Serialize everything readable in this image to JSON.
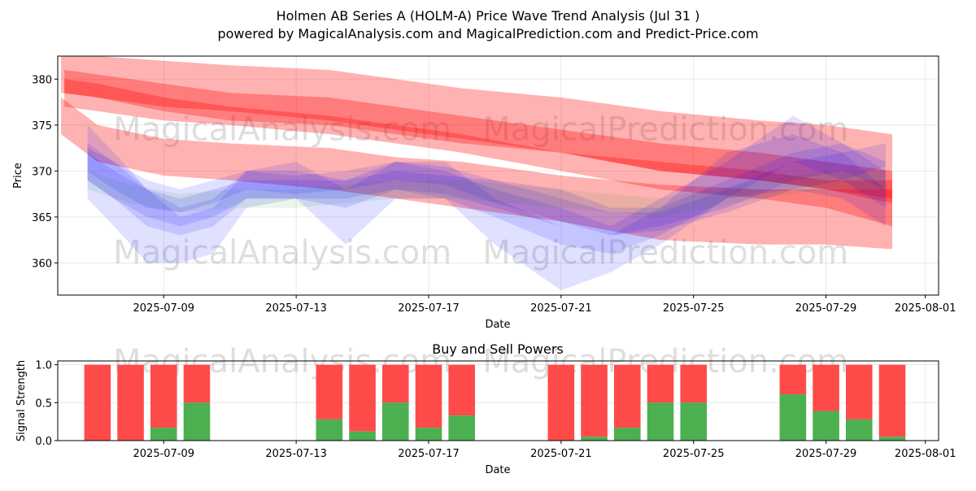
{
  "title_line1": "Holmen AB Series A (HOLM-A) Price Wave Trend Analysis (Jul 31 )",
  "title_line2": "powered by MagicalAnalysis.com and MagicalPrediction.com and Predict-Price.com",
  "watermarks": [
    "MagicalAnalysis.com",
    "MagicalPrediction.com"
  ],
  "colors": {
    "red": "#ff0000",
    "blue": "#0000ff",
    "green": "#008000",
    "buy": "#4caf50",
    "sell": "#ff4a4a"
  },
  "chart_data": [
    {
      "type": "area",
      "title": "",
      "xlabel": "Date",
      "ylabel": "Price",
      "ylim": [
        356.5,
        382.5
      ],
      "xlim": [
        "2025-07-05.8",
        "2025-08-01.4"
      ],
      "x_ticks": [
        "2025-07-09",
        "2025-07-13",
        "2025-07-17",
        "2025-07-21",
        "2025-07-25",
        "2025-07-29",
        "2025-08-01"
      ],
      "y_ticks": [
        360,
        365,
        370,
        375,
        380
      ],
      "grid": true,
      "series": [
        {
          "name": "red band A",
          "color": "red",
          "opacity": 0.3,
          "x": [
            5.9,
            7,
            9,
            11,
            14,
            16,
            18,
            21,
            24,
            27,
            29,
            31
          ],
          "upper": [
            382.5,
            382.5,
            382,
            381.5,
            381,
            380,
            379,
            378,
            376.5,
            375.5,
            375,
            374
          ],
          "lower": [
            378.5,
            378,
            376.5,
            375.5,
            375,
            374,
            373,
            372,
            370,
            369,
            368,
            367
          ]
        },
        {
          "name": "red band B",
          "color": "red",
          "opacity": 0.3,
          "x": [
            5.9,
            7,
            9,
            11,
            14,
            16,
            18,
            21,
            24,
            27,
            29,
            31
          ],
          "upper": [
            378,
            375,
            373.5,
            373,
            372.5,
            371.5,
            371,
            369.5,
            368.5,
            368,
            368,
            368
          ],
          "lower": [
            374,
            371,
            369.5,
            369,
            368,
            367,
            366,
            364.5,
            362.5,
            362,
            362,
            361.5
          ]
        },
        {
          "name": "red band C",
          "color": "red",
          "opacity": 0.3,
          "x": [
            6,
            7,
            9,
            11,
            14,
            16,
            18,
            21,
            24,
            27,
            29,
            31
          ],
          "upper": [
            380,
            379.5,
            378,
            377,
            376,
            375,
            374,
            372,
            371,
            370,
            369,
            369
          ],
          "lower": [
            377,
            376.5,
            375.5,
            375,
            374,
            373,
            372,
            370,
            368,
            367,
            366,
            364
          ]
        },
        {
          "name": "red band D",
          "color": "red",
          "opacity": 0.3,
          "x": [
            6,
            7,
            9,
            11,
            14,
            16,
            18,
            21,
            24,
            27,
            29,
            31
          ],
          "upper": [
            381,
            380.5,
            379.5,
            378.5,
            378,
            377,
            376,
            374.5,
            373,
            372,
            371,
            370
          ],
          "lower": [
            378.5,
            378,
            377,
            376.5,
            375.5,
            374.5,
            373.5,
            372,
            370,
            369,
            368,
            366.5
          ]
        },
        {
          "name": "blue band A",
          "color": "blue",
          "opacity": 0.12,
          "x": [
            6.7,
            7.5,
            8.5,
            9.5,
            10.5,
            11.5,
            13,
            14.5,
            16,
            17.5,
            19,
            21,
            22.5,
            24,
            26,
            28,
            29.5,
            30.8
          ],
          "upper": [
            375,
            372,
            368,
            365,
            366,
            370,
            371,
            368,
            371,
            371,
            367,
            364,
            363,
            366,
            372,
            374,
            372,
            368
          ],
          "lower": [
            367,
            364,
            360,
            360,
            361,
            366,
            367,
            362,
            367,
            367,
            362,
            357,
            359,
            362,
            367,
            368,
            367,
            364
          ]
        },
        {
          "name": "blue band B",
          "color": "blue",
          "opacity": 0.12,
          "x": [
            6.7,
            7.5,
            8.5,
            9.5,
            10.5,
            11.5,
            13,
            14.5,
            16,
            17.5,
            19,
            21,
            22.5,
            24,
            26,
            28,
            29.5,
            30.8
          ],
          "upper": [
            373,
            371,
            368,
            366,
            367,
            370,
            370,
            369,
            371,
            370,
            368,
            366,
            364,
            367,
            371,
            376,
            373,
            370
          ],
          "lower": [
            369,
            367,
            364,
            363,
            364,
            367,
            367,
            366,
            368,
            367,
            365,
            362,
            361,
            363,
            367,
            371,
            369,
            366
          ]
        },
        {
          "name": "blue band C",
          "color": "blue",
          "opacity": 0.12,
          "x": [
            6.7,
            7.5,
            8.5,
            9.5,
            10.5,
            11.5,
            13,
            14.5,
            16,
            17.5,
            19,
            21,
            22.5,
            24,
            26,
            28,
            29.5,
            30.8
          ],
          "upper": [
            372,
            370,
            368,
            367,
            368,
            369,
            369,
            369,
            370,
            369.5,
            369,
            368,
            366,
            366,
            369,
            372,
            373,
            371
          ],
          "lower": [
            369,
            367,
            365,
            364,
            365,
            367,
            367,
            367,
            368,
            367.5,
            366,
            364,
            363,
            364,
            366,
            369,
            370,
            368
          ]
        },
        {
          "name": "blue band D",
          "color": "blue",
          "opacity": 0.12,
          "x": [
            6.7,
            7.5,
            8.5,
            9.5,
            10.5,
            11.5,
            13,
            14.5,
            16,
            17.5,
            19,
            21,
            22.5,
            24,
            26,
            28,
            29.5,
            30.8
          ],
          "upper": [
            372.5,
            371,
            369,
            368,
            369,
            370,
            369.5,
            370,
            371,
            370.5,
            369,
            367,
            365.5,
            365.5,
            368,
            371,
            372,
            373
          ],
          "lower": [
            370,
            368,
            366,
            365.5,
            366.5,
            368,
            367.5,
            368,
            369,
            368.5,
            366.5,
            364.5,
            363,
            363.5,
            365.5,
            368,
            369,
            370.5
          ]
        },
        {
          "name": "green band",
          "color": "green",
          "opacity": 0.08,
          "x": [
            6.7,
            8,
            9.5,
            11,
            13,
            14.5,
            16,
            18,
            21,
            24,
            27,
            29,
            30.8
          ],
          "upper": [
            370,
            368.5,
            367.5,
            368,
            368,
            368.5,
            369,
            369,
            368,
            367,
            369,
            370,
            370
          ],
          "lower": [
            368,
            366.5,
            365.5,
            366,
            366,
            366.5,
            367,
            367,
            366,
            365,
            367,
            368,
            368
          ]
        }
      ]
    },
    {
      "type": "bar",
      "title": "Buy and Sell Powers",
      "xlabel": "Date",
      "ylabel": "Signal Strength",
      "ylim": [
        0,
        1.05
      ],
      "y_ticks": [
        0.0,
        0.5,
        1.0
      ],
      "y_tick_labels": [
        "0.0",
        "0.5",
        "1.0"
      ],
      "x_ticks": [
        "2025-07-09",
        "2025-07-13",
        "2025-07-17",
        "2025-07-21",
        "2025-07-25",
        "2025-07-29",
        "2025-08-01"
      ],
      "days": [
        7,
        8,
        9,
        10,
        14,
        15,
        16,
        17,
        18,
        21,
        22,
        23,
        24,
        25,
        28,
        29,
        30,
        31
      ],
      "buy": [
        0.0,
        0.0,
        0.17,
        0.5,
        0.28,
        0.12,
        0.5,
        0.17,
        0.33,
        0.0,
        0.05,
        0.17,
        0.5,
        0.5,
        0.61,
        0.39,
        0.28,
        0.05
      ],
      "total": 1.0
    }
  ]
}
